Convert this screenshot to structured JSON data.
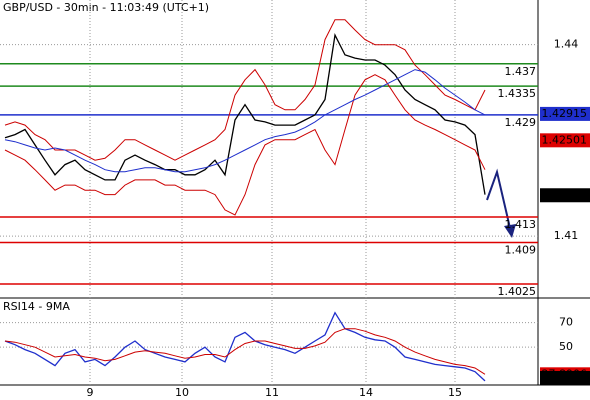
{
  "chart_data": [
    {
      "type": "line",
      "title": "GBP/USD - 30min - 11:03:49 (UTC+1)",
      "x": [
        0,
        1,
        2,
        3,
        4,
        5,
        6,
        7,
        8,
        9,
        10,
        11,
        12,
        13,
        14,
        15,
        16,
        17,
        18,
        19,
        20,
        21,
        22,
        23,
        24,
        25,
        26,
        27,
        28,
        29,
        30,
        31,
        32,
        33,
        34,
        35,
        36,
        37,
        38,
        39,
        40,
        41,
        42,
        43,
        44,
        45,
        46,
        47,
        48
      ],
      "xlim": [
        -0.5,
        53.3
      ],
      "xticks": [
        {
          "value": 8.5,
          "label": "9"
        },
        {
          "value": 17.7,
          "label": "10"
        },
        {
          "value": 26.7,
          "label": "11"
        },
        {
          "value": 36.1,
          "label": "14"
        },
        {
          "value": 45.0,
          "label": "15"
        }
      ],
      "ylim": [
        1.4003,
        1.447
      ],
      "yticks": [
        1.41,
        1.44
      ],
      "grid": true,
      "series": [
        {
          "color": "#000000",
          "values": [
            1.4254,
            1.4259,
            1.4267,
            1.4243,
            1.4219,
            1.4196,
            1.4212,
            1.4219,
            1.4204,
            1.4196,
            1.4188,
            1.4188,
            1.4219,
            1.4227,
            1.4219,
            1.4212,
            1.4204,
            1.4204,
            1.4196,
            1.4196,
            1.4204,
            1.4219,
            1.4196,
            1.4282,
            1.4306,
            1.4282,
            1.4279,
            1.4274,
            1.4274,
            1.4274,
            1.4282,
            1.429,
            1.4314,
            1.4415,
            1.4384,
            1.4379,
            1.4376,
            1.4376,
            1.4368,
            1.4353,
            1.4329,
            1.4314,
            1.4306,
            1.4298,
            1.4282,
            1.4279,
            1.4274,
            1.4259,
            1.4165
          ]
        },
        {
          "color": "#cc0000",
          "values": [
            1.4274,
            1.4279,
            1.4274,
            1.4259,
            1.4251,
            1.4235,
            1.4235,
            1.4235,
            1.4227,
            1.4219,
            1.4222,
            1.4235,
            1.4251,
            1.4251,
            1.4243,
            1.4235,
            1.4227,
            1.4219,
            1.4227,
            1.4235,
            1.4243,
            1.4251,
            1.4267,
            1.4321,
            1.4345,
            1.4361,
            1.4337,
            1.4306,
            1.4298,
            1.4298,
            1.4314,
            1.4337,
            1.4408,
            1.4439,
            1.4439,
            1.4423,
            1.4408,
            1.44,
            1.44,
            1.44,
            1.4392,
            1.4368,
            1.4353,
            1.4337,
            1.4321,
            1.4314,
            1.4306,
            1.4298,
            1.4329
          ]
        },
        {
          "color": "#cc0000",
          "values": [
            1.4235,
            1.4227,
            1.4219,
            1.4204,
            1.4188,
            1.4172,
            1.418,
            1.418,
            1.4172,
            1.4172,
            1.4165,
            1.4165,
            1.418,
            1.4188,
            1.4188,
            1.4188,
            1.418,
            1.418,
            1.4172,
            1.4172,
            1.4172,
            1.4165,
            1.4141,
            1.4133,
            1.4165,
            1.4212,
            1.4243,
            1.4251,
            1.4251,
            1.4251,
            1.4259,
            1.4267,
            1.4235,
            1.4212,
            1.4267,
            1.4321,
            1.4345,
            1.4353,
            1.4345,
            1.4321,
            1.4298,
            1.4282,
            1.4274,
            1.4267,
            1.4259,
            1.4251,
            1.4243,
            1.4235,
            1.4204
          ]
        },
        {
          "color": "#1f2fcc",
          "values": [
            1.4251,
            1.4248,
            1.4243,
            1.4238,
            1.4235,
            1.4238,
            1.4235,
            1.4227,
            1.4219,
            1.4212,
            1.4204,
            1.4201,
            1.4201,
            1.4204,
            1.4207,
            1.4207,
            1.4204,
            1.4201,
            1.4201,
            1.4204,
            1.4207,
            1.4212,
            1.4219,
            1.4227,
            1.4235,
            1.4243,
            1.4251,
            1.4256,
            1.4259,
            1.4263,
            1.427,
            1.4279,
            1.429,
            1.4298,
            1.4306,
            1.4314,
            1.4321,
            1.4329,
            1.4337,
            1.4345,
            1.4353,
            1.4361,
            1.4357,
            1.4345,
            1.4332,
            1.4321,
            1.431,
            1.4298,
            1.429
          ]
        }
      ],
      "levels": [
        {
          "value": 1.437,
          "color": "#1e8a1e"
        },
        {
          "value": 1.4335,
          "color": "#1e8a1e"
        },
        {
          "value": 1.429,
          "color": "#1f2fcc"
        },
        {
          "value": 1.413,
          "color": "#dd0000"
        },
        {
          "value": 1.409,
          "color": "#dd0000"
        },
        {
          "value": 1.4025,
          "color": "#dd0000"
        }
      ],
      "price_labels": [
        {
          "value": 1.42915,
          "color": "#1f2fcc"
        },
        {
          "value": 1.42501,
          "color": "#dd0000"
        },
        {
          "value": 1.4164,
          "color": "#000000"
        }
      ]
    },
    {
      "type": "line",
      "title": "RSI14 - 9MA",
      "ylim": [
        19.2,
        90
      ],
      "yticks": [
        50,
        70
      ],
      "grid": true,
      "series": [
        {
          "color": "#1f2fcc",
          "values": [
            55,
            52,
            48,
            45,
            40,
            35,
            45,
            48,
            38,
            40,
            35,
            42,
            50,
            55,
            48,
            45,
            42,
            40,
            38,
            45,
            50,
            42,
            38,
            58,
            62,
            55,
            52,
            50,
            48,
            45,
            50,
            55,
            60,
            78,
            65,
            62,
            58,
            56,
            55,
            50,
            42,
            40,
            38,
            36,
            35,
            34,
            33,
            30,
            22.5118
          ]
        },
        {
          "color": "#cc0000",
          "values": [
            55,
            54,
            52,
            50,
            46,
            42,
            43,
            44,
            42,
            41,
            39,
            40,
            43,
            46,
            47,
            46,
            45,
            43,
            41,
            42,
            44,
            44,
            42,
            48,
            53,
            55,
            55,
            53,
            51,
            49,
            49,
            51,
            54,
            62,
            65,
            65,
            63,
            60,
            58,
            55,
            50,
            46,
            43,
            40,
            38,
            36,
            35,
            33,
            27.8906
          ]
        }
      ],
      "price_labels": [
        {
          "value": 27.8906,
          "color": "#dd0000"
        },
        {
          "value": 22.5118,
          "color": "#000000"
        }
      ]
    }
  ]
}
